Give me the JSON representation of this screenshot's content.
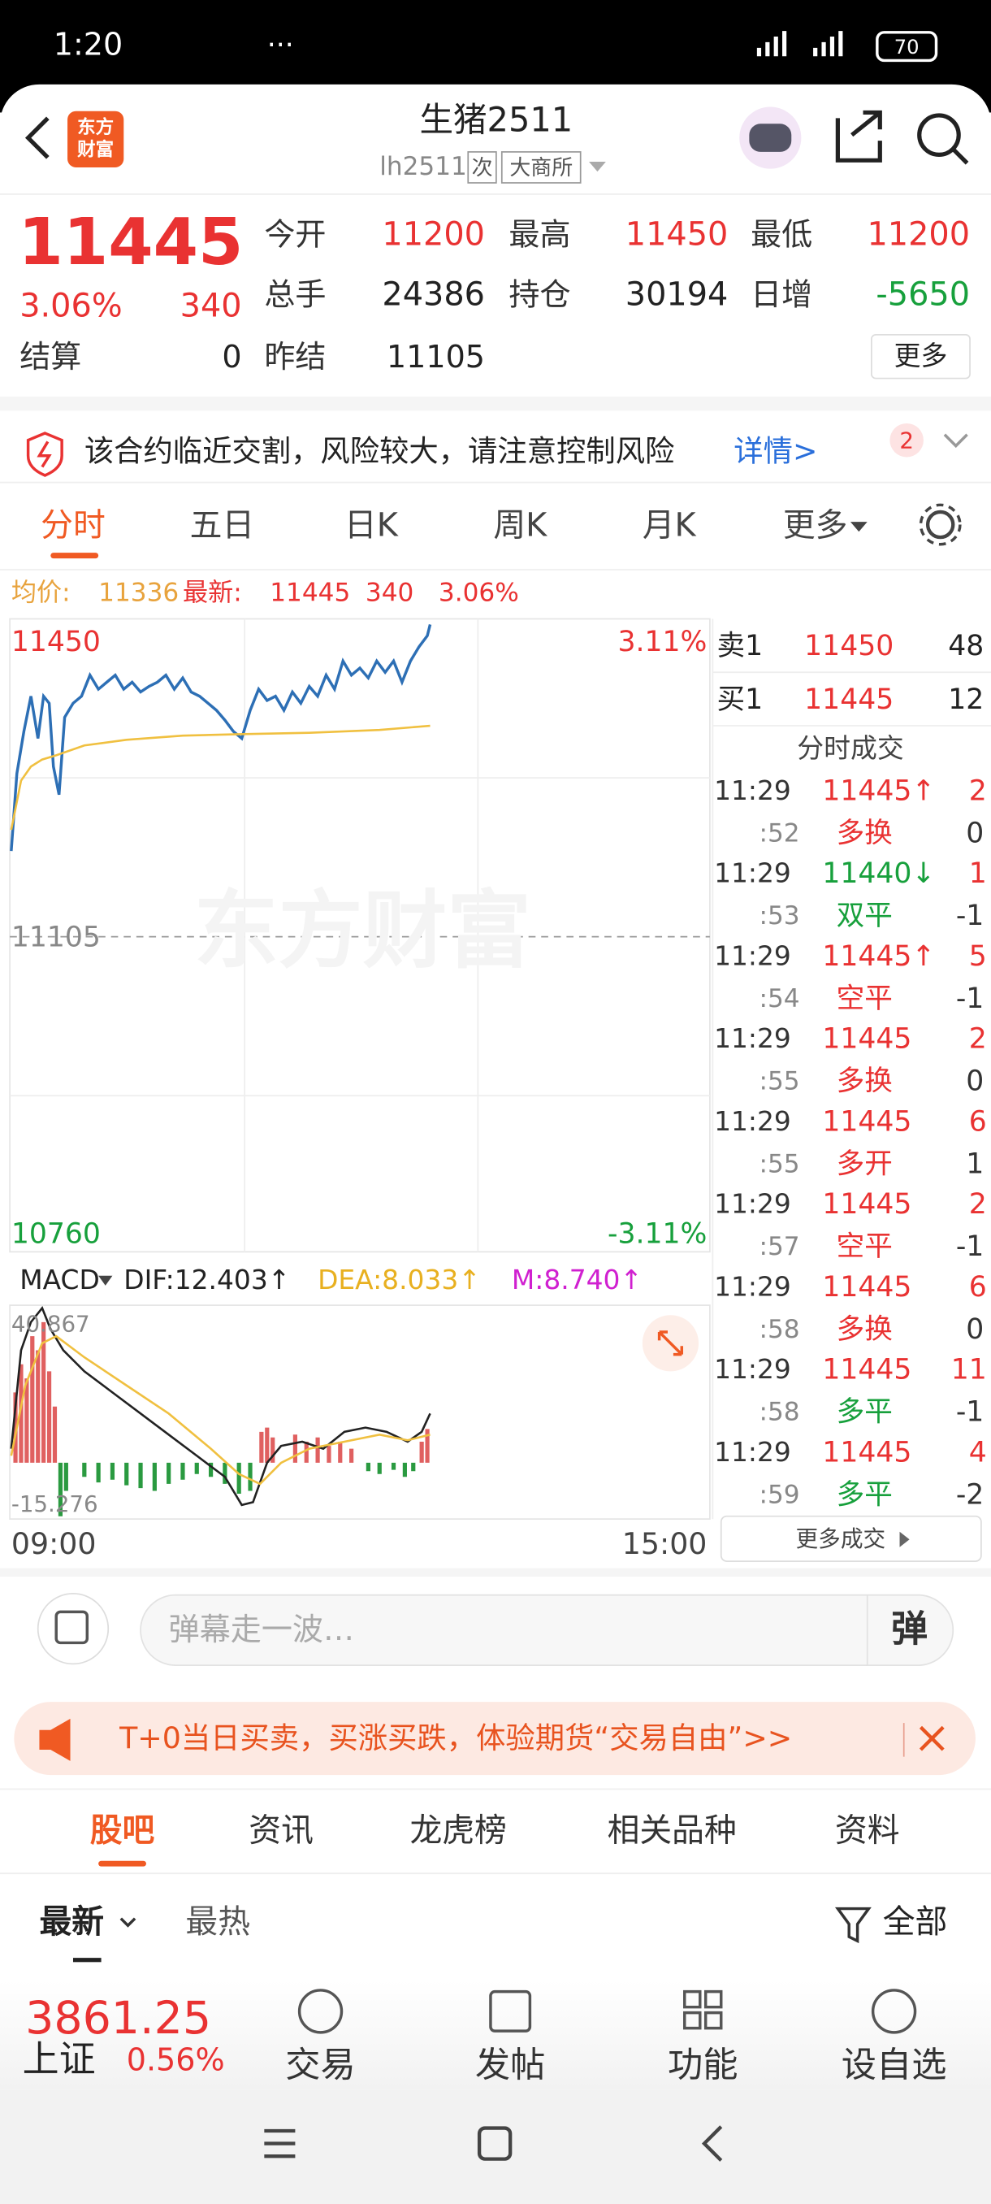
{
  "status_bar": {
    "time": "1:20",
    "battery": "70"
  },
  "header": {
    "logo_top": "东方",
    "logo_bottom": "财富",
    "title": "生猪2511",
    "code": "lh2511",
    "tags": [
      "次",
      "大商所"
    ]
  },
  "quote": {
    "price": "11445",
    "change_pct": "3.06%",
    "change": "340",
    "fields": [
      {
        "label": "今开",
        "value": "11200"
      },
      {
        "label": "最高",
        "value": "11450"
      },
      {
        "label": "最低",
        "value": "11200"
      },
      {
        "label": "总手",
        "value": "24386"
      },
      {
        "label": "持仓",
        "value": "30194"
      },
      {
        "label": "日增",
        "value": "-5650"
      }
    ],
    "settlement": {
      "label": "结算",
      "value": "0"
    },
    "prev_settle": {
      "label": "昨结",
      "value": "11105"
    },
    "more": "更多"
  },
  "notice": {
    "text": "该合约临近交割，风险较大，请注意控制风险",
    "link": "详情>",
    "badge": "2"
  },
  "tabs": [
    "分时",
    "五日",
    "日K",
    "周K",
    "月K",
    "更多"
  ],
  "chart": {
    "avg_label": "均价:",
    "avg": "11336",
    "latest_label": "最新:",
    "latest": "11445",
    "change": "340",
    "pct": "3.06%",
    "y_top": "11450",
    "y_top_pct": "3.11%",
    "y_mid": "11105",
    "y_bot": "10760",
    "y_bot_pct": "-3.11%",
    "watermark": "东方财富",
    "macd": {
      "label": "MACD",
      "dif": "DIF:12.403↑",
      "dea": "DEA:8.033↑",
      "m": "M:8.740↑",
      "top": "40.867",
      "bottom": "-15.276"
    },
    "time_start": "09:00",
    "time_end": "15:00"
  },
  "order_book": {
    "sell": {
      "label": "卖1",
      "price": "11450",
      "qty": "48"
    },
    "buy": {
      "label": "买1",
      "price": "11445",
      "qty": "12"
    },
    "title": "分时成交",
    "trades": [
      {
        "time": "11:29",
        "price": "11445↑",
        "qty": "2",
        "sub_time": ":52",
        "type": "多换",
        "change": "0"
      },
      {
        "time": "11:29",
        "price": "11440↓",
        "qty": "1",
        "sub_time": ":53",
        "type": "双平",
        "change": "-1"
      },
      {
        "time": "11:29",
        "price": "11445↑",
        "qty": "5",
        "sub_time": ":54",
        "type": "空平",
        "change": "-1"
      },
      {
        "time": "11:29",
        "price": "11445",
        "qty": "2",
        "sub_time": ":55",
        "type": "多换",
        "change": "0"
      },
      {
        "time": "11:29",
        "price": "11445",
        "qty": "6",
        "sub_time": ":55",
        "type": "多开",
        "change": "1"
      },
      {
        "time": "11:29",
        "price": "11445",
        "qty": "2",
        "sub_time": ":57",
        "type": "空平",
        "change": "-1"
      },
      {
        "time": "11:29",
        "price": "11445",
        "qty": "6",
        "sub_time": ":58",
        "type": "多换",
        "change": "0"
      },
      {
        "time": "11:29",
        "price": "11445",
        "qty": "11",
        "sub_time": ":58",
        "type": "多平",
        "change": "-1"
      },
      {
        "time": "11:29",
        "price": "11445",
        "qty": "4",
        "sub_time": ":59",
        "type": "多平",
        "change": "-2"
      }
    ],
    "more": "更多成交"
  },
  "danmaku": {
    "placeholder": "弹幕走一波…",
    "button": "弹"
  },
  "ad": {
    "text": "T+0当日买卖，买涨买跌，体验期货“交易自由”>>"
  },
  "sections": [
    "股吧",
    "资讯",
    "龙虎榜",
    "相关品种",
    "资料"
  ],
  "sort": {
    "tabs": [
      "最新",
      "最热"
    ],
    "filter": "全部"
  },
  "bottom": {
    "index_value": "3861.25",
    "index_name": "上证",
    "index_pct": "0.56%",
    "nav": [
      "交易",
      "发帖",
      "功能",
      "设自选"
    ]
  }
}
